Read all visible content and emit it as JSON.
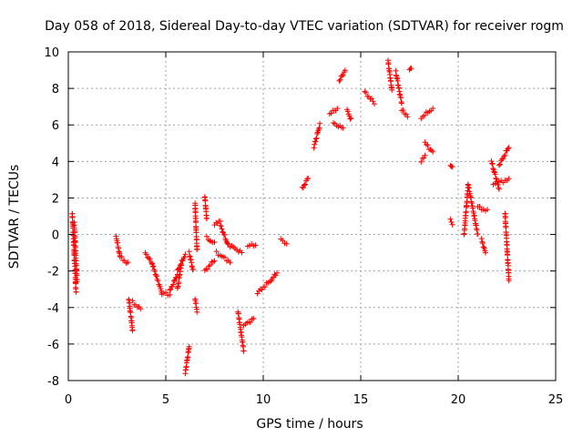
{
  "chart_data": {
    "type": "scatter",
    "title": "Day 058 of 2018, Sidereal Day-to-day VTEC variation (SDTVAR) for receiver rogm",
    "xlabel": "GPS time / hours",
    "ylabel": "SDTVAR / TECUs",
    "xlim": [
      0,
      25
    ],
    "ylim": [
      -8,
      10
    ],
    "xticks": [
      0,
      5,
      10,
      15,
      20,
      25
    ],
    "yticks": [
      -8,
      -6,
      -4,
      -2,
      0,
      2,
      4,
      6,
      8,
      10
    ],
    "xtick_labels": [
      "0",
      "5",
      "10",
      "15",
      "20",
      "25"
    ],
    "ytick_labels": [
      "-8",
      "-6",
      "-4",
      "-2",
      "0",
      "2",
      "4",
      "6",
      "8",
      "10"
    ],
    "grid": true,
    "marker": "+",
    "marker_color": "#ff0000",
    "segments": [
      {
        "x0": 0.2,
        "x1": 0.4,
        "y0": 1.2,
        "y1": -3.2
      },
      {
        "x0": 0.3,
        "x1": 0.45,
        "y0": 0.6,
        "y1": -2.6
      },
      {
        "x0": 2.45,
        "x1": 2.65,
        "y0": -0.1,
        "y1": -1.2
      },
      {
        "x0": 2.65,
        "x1": 3.05,
        "y0": -1.2,
        "y1": -1.6
      },
      {
        "x0": 3.1,
        "x1": 3.3,
        "y0": -3.5,
        "y1": -5.3
      },
      {
        "x0": 3.3,
        "x1": 3.7,
        "y0": -3.7,
        "y1": -4.1
      },
      {
        "x0": 3.95,
        "x1": 4.3,
        "y0": -1.0,
        "y1": -1.6
      },
      {
        "x0": 4.3,
        "x1": 4.8,
        "y0": -1.6,
        "y1": -3.2
      },
      {
        "x0": 4.8,
        "x1": 5.2,
        "y0": -3.2,
        "y1": -3.3
      },
      {
        "x0": 5.2,
        "x1": 5.6,
        "y0": -3.1,
        "y1": -2.2
      },
      {
        "x0": 5.6,
        "x1": 6.0,
        "y0": -2.0,
        "y1": -1.1
      },
      {
        "x0": 5.6,
        "x1": 5.8,
        "y0": -3.0,
        "y1": -1.6
      },
      {
        "x0": 6.0,
        "x1": 6.2,
        "y0": -7.6,
        "y1": -6.1
      },
      {
        "x0": 6.2,
        "x1": 6.4,
        "y0": -1.0,
        "y1": -2.0
      },
      {
        "x0": 6.5,
        "x1": 6.6,
        "y0": 1.7,
        "y1": -0.9
      },
      {
        "x0": 6.5,
        "x1": 6.6,
        "y0": -3.5,
        "y1": -4.2
      },
      {
        "x0": 7.0,
        "x1": 7.1,
        "y0": 2.1,
        "y1": 0.8
      },
      {
        "x0": 7.0,
        "x1": 7.5,
        "y0": -2.0,
        "y1": -1.4
      },
      {
        "x0": 7.1,
        "x1": 7.5,
        "y0": -0.2,
        "y1": -0.5
      },
      {
        "x0": 7.5,
        "x1": 7.8,
        "y0": 0.5,
        "y1": 0.8
      },
      {
        "x0": 7.8,
        "x1": 8.2,
        "y0": 0.5,
        "y1": -0.6
      },
      {
        "x0": 7.6,
        "x1": 8.3,
        "y0": -1.0,
        "y1": -1.5
      },
      {
        "x0": 8.3,
        "x1": 8.9,
        "y0": -0.6,
        "y1": -1.0
      },
      {
        "x0": 8.7,
        "x1": 9.0,
        "y0": -4.2,
        "y1": -6.4
      },
      {
        "x0": 9.0,
        "x1": 9.5,
        "y0": -5.0,
        "y1": -4.6
      },
      {
        "x0": 9.2,
        "x1": 9.6,
        "y0": -0.6,
        "y1": -0.6
      },
      {
        "x0": 9.7,
        "x1": 10.4,
        "y0": -3.2,
        "y1": -2.5
      },
      {
        "x0": 10.4,
        "x1": 10.7,
        "y0": -2.5,
        "y1": -2.1
      },
      {
        "x0": 10.9,
        "x1": 11.2,
        "y0": -0.3,
        "y1": -0.5
      },
      {
        "x0": 12.0,
        "x1": 12.3,
        "y0": 2.5,
        "y1": 3.1
      },
      {
        "x0": 12.6,
        "x1": 12.9,
        "y0": 4.8,
        "y1": 6.0
      },
      {
        "x0": 13.4,
        "x1": 13.8,
        "y0": 6.6,
        "y1": 6.9
      },
      {
        "x0": 13.6,
        "x1": 14.1,
        "y0": 6.1,
        "y1": 5.8
      },
      {
        "x0": 13.9,
        "x1": 14.2,
        "y0": 8.4,
        "y1": 9.0
      },
      {
        "x0": 14.3,
        "x1": 14.5,
        "y0": 6.8,
        "y1": 6.3
      },
      {
        "x0": 15.2,
        "x1": 15.7,
        "y0": 7.8,
        "y1": 7.2
      },
      {
        "x0": 16.4,
        "x1": 16.6,
        "y0": 9.5,
        "y1": 7.9
      },
      {
        "x0": 16.8,
        "x1": 17.1,
        "y0": 8.9,
        "y1": 7.2
      },
      {
        "x0": 17.1,
        "x1": 17.4,
        "y0": 6.8,
        "y1": 6.5
      },
      {
        "x0": 17.5,
        "x1": 17.6,
        "y0": 9.1,
        "y1": 9.1
      },
      {
        "x0": 18.1,
        "x1": 18.7,
        "y0": 6.4,
        "y1": 6.9
      },
      {
        "x0": 18.1,
        "x1": 18.3,
        "y0": 4.0,
        "y1": 4.3
      },
      {
        "x0": 18.3,
        "x1": 18.7,
        "y0": 5.0,
        "y1": 4.5
      },
      {
        "x0": 19.6,
        "x1": 19.7,
        "y0": 3.8,
        "y1": 3.7
      },
      {
        "x0": 19.6,
        "x1": 19.7,
        "y0": 0.8,
        "y1": 0.6
      },
      {
        "x0": 20.3,
        "x1": 20.5,
        "y0": 0.0,
        "y1": 2.5
      },
      {
        "x0": 20.5,
        "x1": 21.0,
        "y0": 2.8,
        "y1": 0.0
      },
      {
        "x0": 21.0,
        "x1": 21.5,
        "y0": 1.5,
        "y1": 1.3
      },
      {
        "x0": 21.2,
        "x1": 21.4,
        "y0": -0.3,
        "y1": -1.0
      },
      {
        "x0": 21.7,
        "x1": 22.1,
        "y0": 4.0,
        "y1": 2.5
      },
      {
        "x0": 21.8,
        "x1": 22.6,
        "y0": 2.8,
        "y1": 3.0
      },
      {
        "x0": 22.1,
        "x1": 22.6,
        "y0": 3.8,
        "y1": 4.8
      },
      {
        "x0": 22.4,
        "x1": 22.6,
        "y0": 1.2,
        "y1": -2.5
      }
    ]
  }
}
